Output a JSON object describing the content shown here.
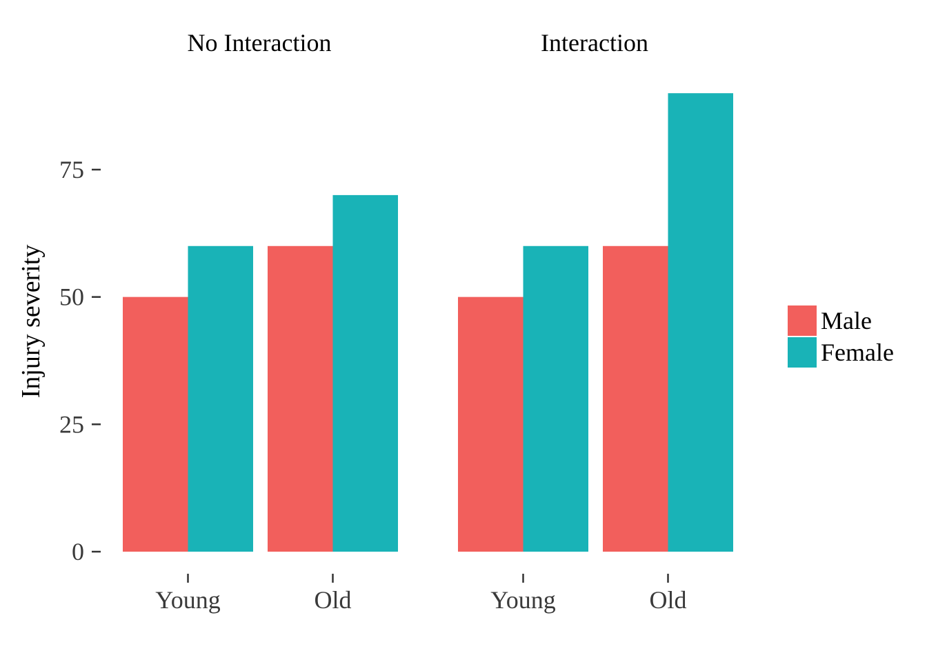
{
  "chart_data": {
    "type": "bar",
    "ylabel": "Injury severity",
    "xlabel": "",
    "ylim": [
      0,
      93
    ],
    "yticks": [
      0,
      25,
      50,
      75
    ],
    "grid": false,
    "legend_position": "right",
    "categories": [
      "Young",
      "Old"
    ],
    "colors": {
      "Male": "#F25F5C",
      "Female": "#19B3B7"
    },
    "legend": [
      "Male",
      "Female"
    ],
    "panels": [
      {
        "title": "No Interaction",
        "series": [
          {
            "name": "Male",
            "values": [
              50,
              60
            ]
          },
          {
            "name": "Female",
            "values": [
              60,
              70
            ]
          }
        ]
      },
      {
        "title": "Interaction",
        "series": [
          {
            "name": "Male",
            "values": [
              50,
              60
            ]
          },
          {
            "name": "Female",
            "values": [
              60,
              90
            ]
          }
        ]
      }
    ]
  }
}
